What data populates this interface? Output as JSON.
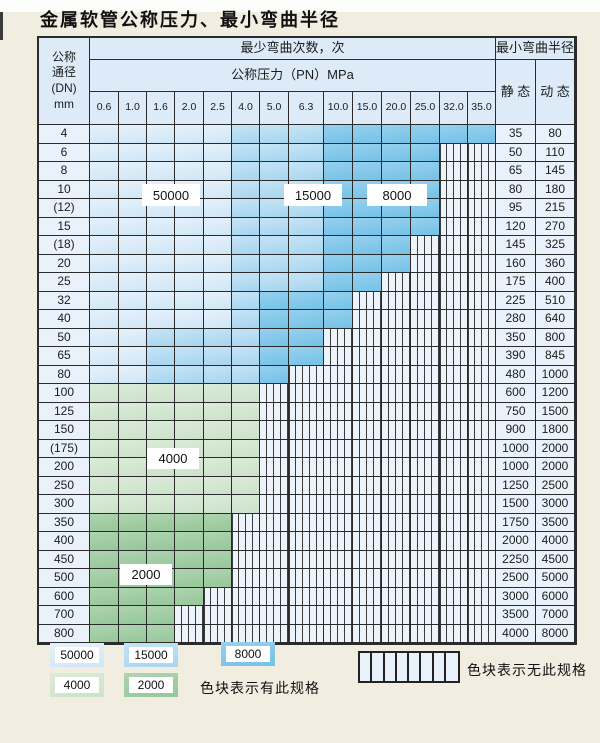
{
  "title": "金属软管公称压力、最小弯曲半径",
  "table": {
    "header": {
      "dn_lines": [
        "公称",
        "通径",
        "(DN)",
        "mm"
      ],
      "bend_times": "最少弯曲次数，次",
      "pressure": "公称压力（PN）MPa",
      "radius": "最小弯曲半径",
      "static": "静 态",
      "dynamic": "动 态",
      "pressures": [
        "0.6",
        "1.0",
        "1.6",
        "2.0",
        "2.5",
        "4.0",
        "5.0",
        "6.3",
        "10.0",
        "15.0",
        "20.0",
        "25.0",
        "32.0",
        "35.0"
      ]
    },
    "zone_colors": {
      "z50": "#cfe6f5",
      "z15": "#a6d5ef",
      "z8": "#74c2e7",
      "z4": "#cbe2c9",
      "z2": "#96c799",
      "no_spec_bg": "#ecf3fa"
    },
    "zone_values": {
      "z50": "50000",
      "z15": "15000",
      "z8": "8000",
      "z4": "4000",
      "z2": "2000"
    },
    "rows": [
      {
        "dn": "4",
        "static": "35",
        "dynamic": "80",
        "zones": [
          [
            "z50",
            5
          ],
          [
            "z15",
            3
          ],
          [
            "z8",
            6
          ]
        ]
      },
      {
        "dn": "6",
        "static": "50",
        "dynamic": "110",
        "zones": [
          [
            "z50",
            5
          ],
          [
            "z15",
            3
          ],
          [
            "z8",
            4
          ],
          [
            "ns",
            2
          ]
        ]
      },
      {
        "dn": "8",
        "static": "65",
        "dynamic": "145",
        "zones": [
          [
            "z50",
            5
          ],
          [
            "z15",
            3
          ],
          [
            "z8",
            4
          ],
          [
            "ns",
            2
          ]
        ]
      },
      {
        "dn": "10",
        "static": "80",
        "dynamic": "180",
        "zones": [
          [
            "z50",
            5
          ],
          [
            "z15",
            3
          ],
          [
            "z8",
            4
          ],
          [
            "ns",
            2
          ]
        ]
      },
      {
        "dn": "(12)",
        "static": "95",
        "dynamic": "215",
        "zones": [
          [
            "z50",
            5
          ],
          [
            "z15",
            3
          ],
          [
            "z8",
            4
          ],
          [
            "ns",
            2
          ]
        ]
      },
      {
        "dn": "15",
        "static": "120",
        "dynamic": "270",
        "zones": [
          [
            "z50",
            5
          ],
          [
            "z15",
            3
          ],
          [
            "z8",
            4
          ],
          [
            "ns",
            2
          ]
        ]
      },
      {
        "dn": "(18)",
        "static": "145",
        "dynamic": "325",
        "zones": [
          [
            "z50",
            5
          ],
          [
            "z15",
            3
          ],
          [
            "z8",
            3
          ],
          [
            "ns",
            3
          ]
        ]
      },
      {
        "dn": "20",
        "static": "160",
        "dynamic": "360",
        "zones": [
          [
            "z50",
            5
          ],
          [
            "z15",
            3
          ],
          [
            "z8",
            3
          ],
          [
            "ns",
            3
          ]
        ]
      },
      {
        "dn": "25",
        "static": "175",
        "dynamic": "400",
        "zones": [
          [
            "z50",
            5
          ],
          [
            "z15",
            3
          ],
          [
            "z8",
            2
          ],
          [
            "ns",
            4
          ]
        ]
      },
      {
        "dn": "32",
        "static": "225",
        "dynamic": "510",
        "zones": [
          [
            "z50",
            5
          ],
          [
            "z15",
            1
          ],
          [
            "z8",
            3
          ],
          [
            "ns",
            5
          ]
        ]
      },
      {
        "dn": "40",
        "static": "280",
        "dynamic": "640",
        "zones": [
          [
            "z50",
            5
          ],
          [
            "z15",
            1
          ],
          [
            "z8",
            3
          ],
          [
            "ns",
            5
          ]
        ]
      },
      {
        "dn": "50",
        "static": "350",
        "dynamic": "800",
        "zones": [
          [
            "z50",
            2
          ],
          [
            "z15",
            4
          ],
          [
            "z8",
            2
          ],
          [
            "ns",
            6
          ]
        ]
      },
      {
        "dn": "65",
        "static": "390",
        "dynamic": "845",
        "zones": [
          [
            "z50",
            2
          ],
          [
            "z15",
            4
          ],
          [
            "z8",
            2
          ],
          [
            "ns",
            6
          ]
        ]
      },
      {
        "dn": "80",
        "static": "480",
        "dynamic": "1000",
        "zones": [
          [
            "z50",
            2
          ],
          [
            "z15",
            4
          ],
          [
            "z8",
            1
          ],
          [
            "ns",
            7
          ]
        ]
      },
      {
        "dn": "100",
        "static": "600",
        "dynamic": "1200",
        "zones": [
          [
            "z4",
            6
          ],
          [
            "ns",
            8
          ]
        ]
      },
      {
        "dn": "125",
        "static": "750",
        "dynamic": "1500",
        "zones": [
          [
            "z4",
            6
          ],
          [
            "ns",
            8
          ]
        ]
      },
      {
        "dn": "150",
        "static": "900",
        "dynamic": "1800",
        "zones": [
          [
            "z4",
            6
          ],
          [
            "ns",
            8
          ]
        ]
      },
      {
        "dn": "(175)",
        "static": "1000",
        "dynamic": "2000",
        "zones": [
          [
            "z4",
            6
          ],
          [
            "ns",
            8
          ]
        ]
      },
      {
        "dn": "200",
        "static": "1000",
        "dynamic": "2000",
        "zones": [
          [
            "z4",
            6
          ],
          [
            "ns",
            8
          ]
        ]
      },
      {
        "dn": "250",
        "static": "1250",
        "dynamic": "2500",
        "zones": [
          [
            "z4",
            6
          ],
          [
            "ns",
            8
          ]
        ]
      },
      {
        "dn": "300",
        "static": "1500",
        "dynamic": "3000",
        "zones": [
          [
            "z4",
            6
          ],
          [
            "ns",
            8
          ]
        ]
      },
      {
        "dn": "350",
        "static": "1750",
        "dynamic": "3500",
        "zones": [
          [
            "z2",
            5
          ],
          [
            "ns",
            9
          ]
        ]
      },
      {
        "dn": "400",
        "static": "2000",
        "dynamic": "4000",
        "zones": [
          [
            "z2",
            5
          ],
          [
            "ns",
            9
          ]
        ]
      },
      {
        "dn": "450",
        "static": "2250",
        "dynamic": "4500",
        "zones": [
          [
            "z2",
            5
          ],
          [
            "ns",
            9
          ]
        ]
      },
      {
        "dn": "500",
        "static": "2500",
        "dynamic": "5000",
        "zones": [
          [
            "z2",
            5
          ],
          [
            "ns",
            9
          ]
        ]
      },
      {
        "dn": "600",
        "static": "3000",
        "dynamic": "6000",
        "zones": [
          [
            "z2",
            4
          ],
          [
            "ns",
            10
          ]
        ]
      },
      {
        "dn": "700",
        "static": "3500",
        "dynamic": "7000",
        "zones": [
          [
            "z2",
            3
          ],
          [
            "ns",
            11
          ]
        ]
      },
      {
        "dn": "800",
        "static": "4000",
        "dynamic": "8000",
        "zones": [
          [
            "z2",
            3
          ],
          [
            "ns",
            11
          ]
        ]
      }
    ]
  },
  "region_labels": {
    "b50000": "50000",
    "b15000": "15000",
    "b8000": "8000",
    "b4000": "4000",
    "b2000": "2000"
  },
  "legend": {
    "row1": [
      {
        "value": "50000",
        "zone": "z50"
      },
      {
        "value": "15000",
        "zone": "z15"
      },
      {
        "value": "8000",
        "zone": "z8"
      }
    ],
    "row2": [
      {
        "value": "4000",
        "zone": "z4"
      },
      {
        "value": "2000",
        "zone": "z2"
      }
    ],
    "has_spec_text": "色块表示有此规格",
    "no_spec_text": "色块表示无此规格"
  }
}
